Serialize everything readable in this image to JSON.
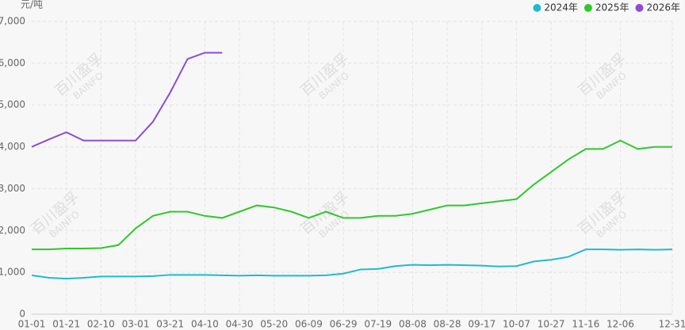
{
  "chart_data": {
    "type": "line",
    "y_unit": "元/吨",
    "watermark": [
      "百川盈孚",
      "BAINFO"
    ],
    "categories": [
      "01-01",
      null,
      "01-21",
      null,
      "02-10",
      null,
      "03-01",
      null,
      "03-21",
      null,
      "04-10",
      null,
      "04-30",
      null,
      "05-20",
      null,
      "06-09",
      null,
      "06-29",
      null,
      "07-19",
      null,
      "08-08",
      null,
      "08-28",
      null,
      "09-17",
      null,
      "10-07",
      null,
      "10-27",
      null,
      "11-16",
      null,
      "12-06",
      null,
      null,
      "12-31"
    ],
    "series": [
      {
        "name": "2024年",
        "color": "#1cbcd0",
        "values": [
          930,
          870,
          850,
          870,
          900,
          900,
          900,
          910,
          940,
          940,
          940,
          930,
          920,
          930,
          920,
          920,
          920,
          930,
          970,
          1070,
          1080,
          1150,
          1180,
          1170,
          1180,
          1170,
          1160,
          1140,
          1150,
          1260,
          1300,
          1370,
          1550,
          1550,
          1540,
          1550,
          1540,
          1550
        ]
      },
      {
        "name": "2025年",
        "color": "#2ec92a",
        "values": [
          1550,
          1550,
          1570,
          1570,
          1580,
          1650,
          2050,
          2350,
          2450,
          2450,
          2350,
          2300,
          2450,
          2600,
          2550,
          2450,
          2300,
          2450,
          2300,
          2300,
          2350,
          2350,
          2400,
          2500,
          2600,
          2600,
          2650,
          2700,
          2750,
          3100,
          3400,
          3700,
          3950,
          3950,
          4150,
          3950,
          4000,
          4000
        ]
      },
      {
        "name": "2026年",
        "color": "#8a4ed6",
        "values": [
          4000,
          4180,
          4350,
          4150,
          4150,
          4150,
          4150,
          4600,
          5300,
          6100,
          6250,
          6250,
          null,
          null,
          null,
          null,
          null,
          null,
          null,
          null,
          null,
          null,
          null,
          null,
          null,
          null,
          null,
          null,
          null,
          null,
          null,
          null,
          null,
          null,
          null,
          null,
          null,
          null
        ]
      }
    ],
    "ylim": [
      0,
      7000
    ],
    "yticks": [
      0,
      {
        "value": 1000,
        "label": "1,000"
      },
      {
        "value": 2000,
        "label": "2,000"
      },
      {
        "value": 3000,
        "label": "3,000"
      },
      {
        "value": 4000,
        "label": "4,000"
      },
      {
        "value": 5000,
        "label": "5,000"
      },
      {
        "value": 6000,
        "label": "6,000"
      },
      {
        "value": 7000,
        "label": "7,000"
      }
    ],
    "grid": true,
    "legend": "top-right"
  }
}
